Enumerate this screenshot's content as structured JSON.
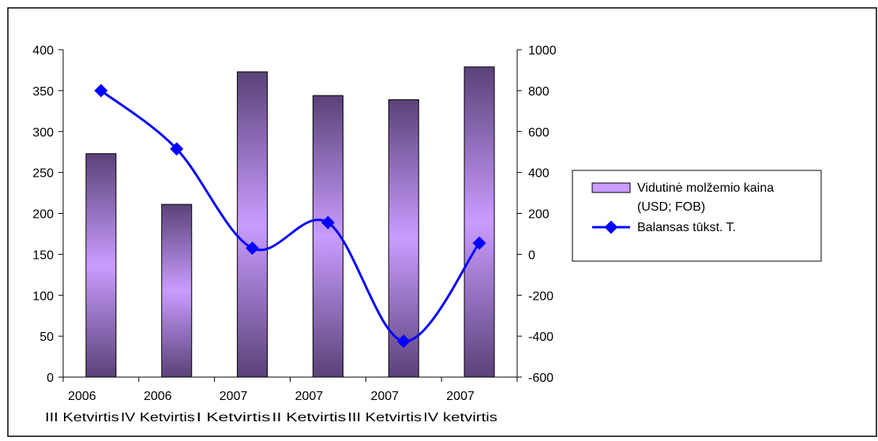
{
  "chart_data": {
    "type": "bar",
    "categories": [
      [
        "2006",
        "III Ketvirtis"
      ],
      [
        "2006",
        "IV  Ketvirtis"
      ],
      [
        "2007",
        "I Ketvirtis"
      ],
      [
        "2007",
        "II Ketvirtis"
      ],
      [
        "2007",
        "III Ketvirtis"
      ],
      [
        "2007",
        "IV  ketvirtis"
      ]
    ],
    "series": [
      {
        "name": "Vidutinė molžemio kaina (USD; FOB)",
        "type": "bar",
        "axis": "left",
        "values": [
          273,
          211,
          373,
          344,
          339,
          379
        ]
      },
      {
        "name": "Balansas tūkst. T.",
        "type": "line",
        "axis": "right",
        "values": [
          800,
          515,
          30,
          155,
          -425,
          55
        ]
      }
    ],
    "y_left": {
      "min": 0,
      "max": 400,
      "step": 50
    },
    "y_right": {
      "min": -600,
      "max": 1000,
      "step": 200
    },
    "legend_position": "right",
    "grid": false,
    "colors": {
      "bar_edge": "#5a4278",
      "bar_center": "#c99cff",
      "line": "#0000ff",
      "marker": "#0000ff",
      "axis": "#000000"
    }
  }
}
